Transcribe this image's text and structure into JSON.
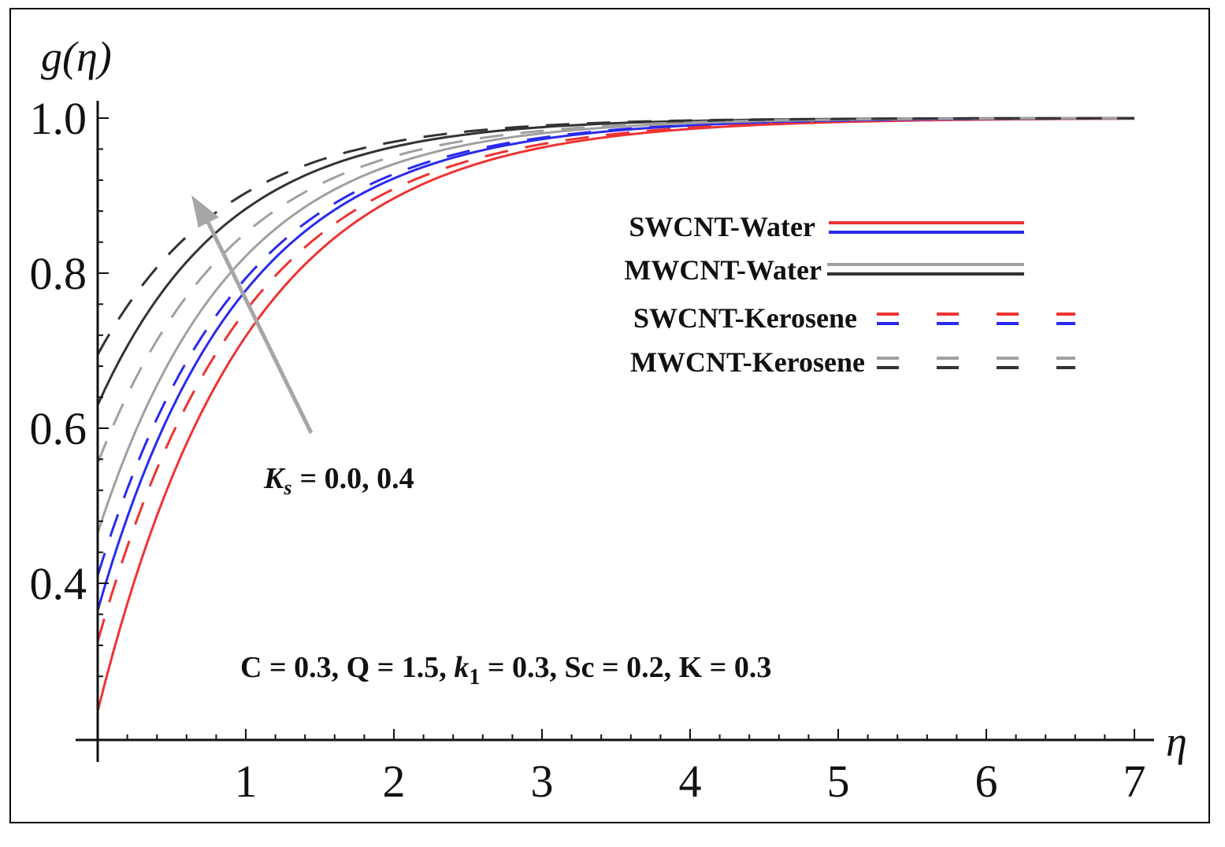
{
  "chart_data": {
    "type": "line",
    "xlabel": "η",
    "ylabel": "g(η)",
    "xlim": [
      0,
      7
    ],
    "ylim": [
      0.2,
      1.0
    ],
    "x_ticks": [
      "1",
      "2",
      "3",
      "4",
      "5",
      "6",
      "7"
    ],
    "y_ticks": [
      "0.4",
      "0.6",
      "0.8",
      "1.0"
    ],
    "series": [
      {
        "name": "SWCNT-Water, Ks = 0.0",
        "color": "#ee3333",
        "dash": "solid",
        "g0": 0.235,
        "k": 1.0
      },
      {
        "name": "SWCNT-Water, Ks = 0.4",
        "color": "#2a2aee",
        "dash": "solid",
        "g0": 0.365,
        "k": 1.05
      },
      {
        "name": "SWCNT-Kerosene, Ks = 0.0",
        "color": "#ee3333",
        "dash": "dashed",
        "g0": 0.325,
        "k": 1.0
      },
      {
        "name": "SWCNT-Kerosene, Ks = 0.4",
        "color": "#2a2aee",
        "dash": "dashed",
        "g0": 0.41,
        "k": 1.05
      },
      {
        "name": "MWCNT-Water, Ks = 0.0",
        "color": "#a0a0a0",
        "dash": "solid",
        "g0": 0.465,
        "k": 1.1
      },
      {
        "name": "MWCNT-Water, Ks = 0.4",
        "color": "#333333",
        "dash": "solid",
        "g0": 0.63,
        "k": 1.15
      },
      {
        "name": "MWCNT-Kerosene, Ks = 0.0",
        "color": "#a0a0a0",
        "dash": "dashed",
        "g0": 0.555,
        "k": 1.1
      },
      {
        "name": "MWCNT-Kerosene, Ks = 0.4",
        "color": "#333333",
        "dash": "dashed",
        "g0": 0.695,
        "k": 1.15
      }
    ],
    "legend": [
      {
        "label": "SWCNT-Water",
        "colors": [
          "#ee3333",
          "#2a2aee"
        ],
        "dash": "solid"
      },
      {
        "label": "MWCNT-Water",
        "colors": [
          "#a0a0a0",
          "#333333"
        ],
        "dash": "solid"
      },
      {
        "label": "SWCNT-Kerosene",
        "colors": [
          "#ee3333",
          "#2a2aee"
        ],
        "dash": "dashed"
      },
      {
        "label": "MWCNT-Kerosene",
        "colors": [
          "#a0a0a0",
          "#333333"
        ],
        "dash": "dashed"
      }
    ],
    "annotation_ks": "= 0.0, 0.4",
    "annotation_params": {
      "part1": "C = 0.3, Q = 1.5, ",
      "k_symbol": "k",
      "k_sub": "1",
      "part2": " = 0.3, Sc = 0.2, K = 0.3"
    },
    "arrow_color": "#a6a6a6"
  }
}
